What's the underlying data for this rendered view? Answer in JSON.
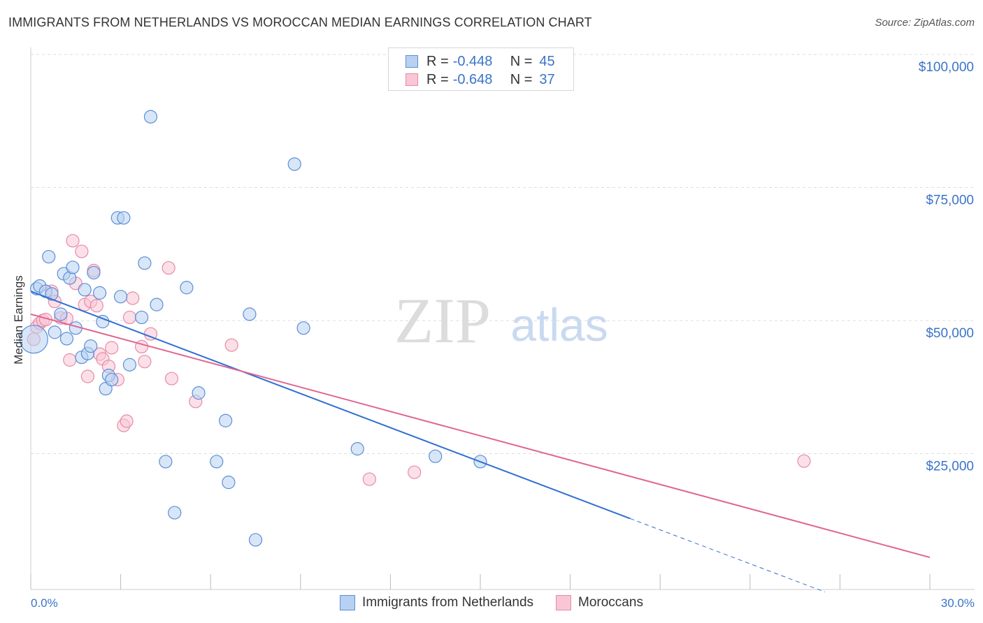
{
  "header": {
    "title": "IMMIGRANTS FROM NETHERLANDS VS MOROCCAN MEDIAN EARNINGS CORRELATION CHART",
    "source": "Source: ZipAtlas.com"
  },
  "watermark": {
    "zip": "ZIP",
    "atlas": "atlas"
  },
  "colors": {
    "blue_fill": "#b8d1f3",
    "blue_stroke": "#5b8ed6",
    "blue_line": "#2f6fd0",
    "pink_fill": "#f8c6d5",
    "pink_stroke": "#e88aa8",
    "pink_line": "#e06690",
    "axis_label": "#3a74c8",
    "grid": "#dddddd"
  },
  "legend": {
    "rows": [
      {
        "r_label": "R =",
        "r_value": "-0.448",
        "n_label": "N =",
        "n_value": "45"
      },
      {
        "r_label": "R =",
        "r_value": "-0.648",
        "n_label": "N =",
        "n_value": "37"
      }
    ]
  },
  "bottom_legend": {
    "items": [
      {
        "label": "Immigrants from Netherlands"
      },
      {
        "label": "Moroccans"
      }
    ]
  },
  "chart_data": {
    "type": "scatter",
    "title": "IMMIGRANTS FROM NETHERLANDS VS MOROCCAN MEDIAN EARNINGS CORRELATION CHART",
    "xlabel": "",
    "ylabel": "Median Earnings",
    "xlim": [
      0,
      30
    ],
    "ylim": [
      0,
      100000
    ],
    "x_tick_labels": {
      "min": "0.0%",
      "max": "30.0%"
    },
    "y_ticks": [
      {
        "value": 100000,
        "label": "$100,000"
      },
      {
        "value": 75000,
        "label": "$75,000"
      },
      {
        "value": 50000,
        "label": "$50,000"
      },
      {
        "value": 25000,
        "label": "$25,000"
      }
    ],
    "series": [
      {
        "name": "Immigrants from Netherlands",
        "R": -0.448,
        "N": 45,
        "trend": {
          "x0": 0,
          "y0": 55500,
          "x1": 20,
          "y1": 12800,
          "dash_x_end": 26.5,
          "dash_y_end": -1000
        },
        "points": [
          [
            0.1,
            46500,
            20
          ],
          [
            0.2,
            56000,
            9
          ],
          [
            0.3,
            56500,
            9
          ],
          [
            0.5,
            55500,
            9
          ],
          [
            0.6,
            62000,
            9
          ],
          [
            0.7,
            55000,
            9
          ],
          [
            0.8,
            47800,
            9
          ],
          [
            1.0,
            51200,
            9
          ],
          [
            1.1,
            58800,
            9
          ],
          [
            1.2,
            46600,
            9
          ],
          [
            1.3,
            58000,
            9
          ],
          [
            1.4,
            60000,
            9
          ],
          [
            1.5,
            48600,
            9
          ],
          [
            1.7,
            43100,
            9
          ],
          [
            1.8,
            55800,
            9
          ],
          [
            1.9,
            43800,
            9
          ],
          [
            2.0,
            45200,
            9
          ],
          [
            2.1,
            59000,
            9
          ],
          [
            2.3,
            55200,
            9
          ],
          [
            2.4,
            49800,
            9
          ],
          [
            2.5,
            37200,
            9
          ],
          [
            2.6,
            39700,
            9
          ],
          [
            2.7,
            38900,
            9
          ],
          [
            2.9,
            69300,
            9
          ],
          [
            3.0,
            54500,
            9
          ],
          [
            3.1,
            69300,
            9
          ],
          [
            3.3,
            41700,
            9
          ],
          [
            3.7,
            50600,
            9
          ],
          [
            3.8,
            60800,
            9
          ],
          [
            4.0,
            88300,
            9
          ],
          [
            4.2,
            53000,
            9
          ],
          [
            4.5,
            23500,
            9
          ],
          [
            4.8,
            13900,
            9
          ],
          [
            5.2,
            56200,
            9
          ],
          [
            5.6,
            36400,
            9
          ],
          [
            6.2,
            23500,
            9
          ],
          [
            6.5,
            31200,
            9
          ],
          [
            6.6,
            19600,
            9
          ],
          [
            7.3,
            51200,
            9
          ],
          [
            7.5,
            8800,
            9
          ],
          [
            8.8,
            79400,
            9
          ],
          [
            9.1,
            48600,
            9
          ],
          [
            10.9,
            25900,
            9
          ],
          [
            13.5,
            24500,
            9
          ],
          [
            15.0,
            23500,
            9
          ]
        ]
      },
      {
        "name": "Moroccans",
        "R": -0.648,
        "N": 37,
        "trend": {
          "x0": 0,
          "y0": 51200,
          "x1": 30,
          "y1": 5500
        },
        "points": [
          [
            0.1,
            46500,
            9
          ],
          [
            0.2,
            48800,
            9
          ],
          [
            0.3,
            49500,
            9
          ],
          [
            0.4,
            50000,
            9
          ],
          [
            0.5,
            50200,
            9
          ],
          [
            0.7,
            55500,
            9
          ],
          [
            0.8,
            53600,
            9
          ],
          [
            1.0,
            50500,
            9
          ],
          [
            1.2,
            50400,
            9
          ],
          [
            1.3,
            42600,
            9
          ],
          [
            1.4,
            65000,
            9
          ],
          [
            1.5,
            57000,
            9
          ],
          [
            1.7,
            63000,
            9
          ],
          [
            1.8,
            53000,
            9
          ],
          [
            1.9,
            39500,
            9
          ],
          [
            2.0,
            53600,
            9
          ],
          [
            2.1,
            59400,
            9
          ],
          [
            2.2,
            52800,
            9
          ],
          [
            2.3,
            43700,
            9
          ],
          [
            2.4,
            42800,
            9
          ],
          [
            2.6,
            41400,
            9
          ],
          [
            2.7,
            44900,
            9
          ],
          [
            2.9,
            38900,
            9
          ],
          [
            3.1,
            30300,
            9
          ],
          [
            3.2,
            31100,
            9
          ],
          [
            3.3,
            50600,
            9
          ],
          [
            3.4,
            54200,
            9
          ],
          [
            3.7,
            45100,
            9
          ],
          [
            3.8,
            42300,
            9
          ],
          [
            4.0,
            47500,
            9
          ],
          [
            4.6,
            59900,
            9
          ],
          [
            4.7,
            39100,
            9
          ],
          [
            5.5,
            34800,
            9
          ],
          [
            6.7,
            45400,
            9
          ],
          [
            11.3,
            20200,
            9
          ],
          [
            12.8,
            21500,
            9
          ],
          [
            25.8,
            23600,
            9
          ]
        ]
      }
    ]
  }
}
